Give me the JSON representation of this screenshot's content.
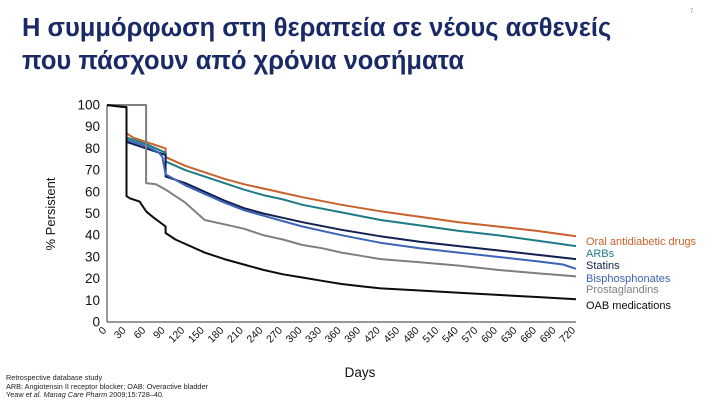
{
  "slide": {
    "title_line1": "Η συμμόρφωση στη θεραπεία σε νέους ασθενείς",
    "title_line2": "που πάσχουν από χρόνια νοσήματα",
    "page_number": "7"
  },
  "footnotes": {
    "study": "Retrospective database study",
    "abbreviations": "ARB: Angiotensin II receptor blocker; OAB: Overactive bladder",
    "ref_authors": "Yeaw ",
    "ref_journal": "et al. Manag Care Pharm",
    "ref_rest": " 2009;15:728–40."
  },
  "chart_data": {
    "type": "line",
    "xlabel": "Days",
    "ylabel": "% Persistent",
    "xlim": [
      0,
      720
    ],
    "ylim": [
      0,
      100
    ],
    "xticks": [
      0,
      30,
      60,
      90,
      120,
      150,
      180,
      210,
      240,
      270,
      300,
      330,
      360,
      390,
      420,
      450,
      480,
      510,
      540,
      570,
      600,
      630,
      660,
      690,
      720
    ],
    "yticks": [
      0,
      10,
      20,
      30,
      40,
      50,
      60,
      70,
      80,
      90,
      100
    ],
    "grid": false,
    "legend": "right",
    "series": [
      {
        "name": "Oral antidiabetic drugs",
        "color": "#c8612a",
        "points": [
          [
            0,
            100
          ],
          [
            30,
            99
          ],
          [
            30,
            87
          ],
          [
            40,
            85
          ],
          [
            60,
            83
          ],
          [
            90,
            80
          ],
          [
            90,
            76
          ],
          [
            120,
            72
          ],
          [
            150,
            69
          ],
          [
            180,
            66
          ],
          [
            210,
            63.5
          ],
          [
            240,
            61.5
          ],
          [
            270,
            59.5
          ],
          [
            300,
            57.5
          ],
          [
            360,
            54
          ],
          [
            420,
            51
          ],
          [
            480,
            48.5
          ],
          [
            540,
            46
          ],
          [
            600,
            44
          ],
          [
            660,
            42
          ],
          [
            720,
            39.5
          ]
        ]
      },
      {
        "name": "ARBs",
        "color": "#1e7b85",
        "points": [
          [
            0,
            100
          ],
          [
            30,
            99
          ],
          [
            30,
            85
          ],
          [
            40,
            84
          ],
          [
            60,
            82
          ],
          [
            90,
            78
          ],
          [
            90,
            74
          ],
          [
            120,
            70
          ],
          [
            150,
            67
          ],
          [
            180,
            64
          ],
          [
            210,
            61
          ],
          [
            240,
            58.5
          ],
          [
            270,
            56.5
          ],
          [
            300,
            54
          ],
          [
            360,
            50.5
          ],
          [
            420,
            47
          ],
          [
            480,
            44.5
          ],
          [
            540,
            42
          ],
          [
            600,
            40
          ],
          [
            660,
            37.5
          ],
          [
            720,
            35
          ]
        ]
      },
      {
        "name": "Statins",
        "color": "#102050",
        "points": [
          [
            0,
            100
          ],
          [
            30,
            99
          ],
          [
            30,
            83
          ],
          [
            40,
            82
          ],
          [
            60,
            80
          ],
          [
            80,
            78
          ],
          [
            90,
            77
          ],
          [
            90,
            67
          ],
          [
            120,
            64
          ],
          [
            150,
            60
          ],
          [
            180,
            56
          ],
          [
            210,
            52.5
          ],
          [
            240,
            50
          ],
          [
            270,
            48
          ],
          [
            300,
            46
          ],
          [
            360,
            42.5
          ],
          [
            420,
            39.5
          ],
          [
            480,
            37
          ],
          [
            540,
            35
          ],
          [
            600,
            33
          ],
          [
            660,
            31
          ],
          [
            720,
            29
          ]
        ]
      },
      {
        "name": "Bisphosphonates",
        "color": "#3b64b6",
        "points": [
          [
            0,
            100
          ],
          [
            30,
            99
          ],
          [
            30,
            84
          ],
          [
            40,
            83
          ],
          [
            60,
            81
          ],
          [
            80,
            78
          ],
          [
            85,
            76
          ],
          [
            90,
            68
          ],
          [
            120,
            63
          ],
          [
            150,
            59
          ],
          [
            180,
            55
          ],
          [
            210,
            51.5
          ],
          [
            240,
            49
          ],
          [
            270,
            46.5
          ],
          [
            300,
            44
          ],
          [
            360,
            40
          ],
          [
            420,
            36.5
          ],
          [
            480,
            34
          ],
          [
            540,
            32
          ],
          [
            600,
            30
          ],
          [
            660,
            28
          ],
          [
            700,
            26.5
          ],
          [
            720,
            24.5
          ]
        ]
      },
      {
        "name": "Prostaglandins",
        "color": "#7f7f7f",
        "points": [
          [
            0,
            100
          ],
          [
            50,
            100
          ],
          [
            60,
            100
          ],
          [
            60,
            64
          ],
          [
            75,
            63.5
          ],
          [
            90,
            61
          ],
          [
            105,
            58
          ],
          [
            120,
            55
          ],
          [
            150,
            47
          ],
          [
            180,
            45
          ],
          [
            210,
            43
          ],
          [
            240,
            40
          ],
          [
            270,
            38
          ],
          [
            300,
            35.5
          ],
          [
            330,
            34
          ],
          [
            360,
            32
          ],
          [
            390,
            30.5
          ],
          [
            420,
            29
          ],
          [
            480,
            27.5
          ],
          [
            540,
            26
          ],
          [
            600,
            24
          ],
          [
            660,
            22.5
          ],
          [
            720,
            21
          ]
        ]
      },
      {
        "name": "OAB medications",
        "color": "#0c0c0c",
        "points": [
          [
            0,
            100
          ],
          [
            30,
            99
          ],
          [
            30,
            58
          ],
          [
            35,
            57
          ],
          [
            50,
            55.5
          ],
          [
            60,
            51
          ],
          [
            70,
            48.5
          ],
          [
            90,
            44
          ],
          [
            90,
            41
          ],
          [
            105,
            38
          ],
          [
            120,
            36
          ],
          [
            150,
            32
          ],
          [
            180,
            29
          ],
          [
            210,
            26.5
          ],
          [
            240,
            24
          ],
          [
            270,
            22
          ],
          [
            300,
            20.5
          ],
          [
            330,
            19
          ],
          [
            360,
            17.5
          ],
          [
            390,
            16.5
          ],
          [
            420,
            15.5
          ],
          [
            480,
            14.5
          ],
          [
            540,
            13.5
          ],
          [
            600,
            12.5
          ],
          [
            660,
            11.5
          ],
          [
            720,
            10.5
          ]
        ]
      }
    ]
  }
}
